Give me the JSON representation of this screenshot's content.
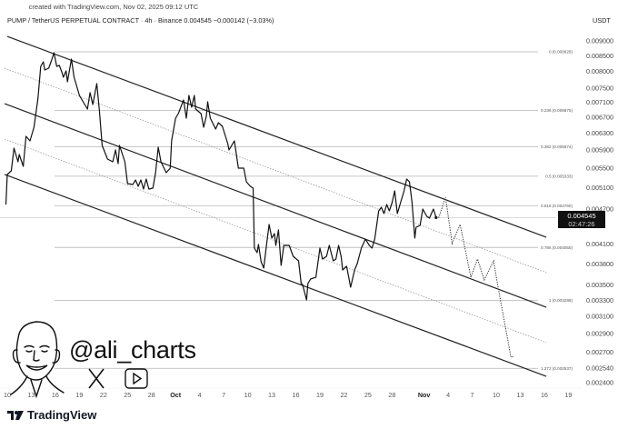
{
  "header": {
    "created": "created with TradingView.com, Nov 02, 2025 09:12 UTC",
    "symbol_line": "PUMP / TetherUS PERPETUAL CONTRACT · 4h · Binance  0.004545  −0.000142 (−3.03%)",
    "currency": "USDT"
  },
  "price_badge": {
    "price": "0.004545",
    "countdown": "02:47:26"
  },
  "watermark": {
    "handle": "@ali_charts",
    "icons": [
      "x-logo-icon",
      "youtube-play-icon",
      "cartoon-avatar"
    ]
  },
  "footer": {
    "brand": "TradingView"
  },
  "colors": {
    "price_line": "#111111",
    "channel": "#222222",
    "fib": "#b0b0b0",
    "badge": "#111111"
  },
  "chart_data": {
    "type": "line",
    "title": "",
    "xlabel": "",
    "ylabel": "",
    "y_scale": "log",
    "ylim": [
      0.0024,
      0.009
    ],
    "grid": false,
    "y_ticks": [
      "0.009000",
      "0.008500",
      "0.008000",
      "0.007500",
      "0.007100",
      "0.006700",
      "0.006300",
      "0.005900",
      "0.005500",
      "0.005100",
      "0.004700",
      "0.004100",
      "0.003800",
      "0.003500",
      "0.003300",
      "0.003100",
      "0.002900",
      "0.002700",
      "0.002540",
      "0.002400"
    ],
    "x_ticks": [
      {
        "label": "10",
        "date": "2025-09-10"
      },
      {
        "label": "13",
        "date": "2025-09-13"
      },
      {
        "label": "16",
        "date": "2025-09-16"
      },
      {
        "label": "19",
        "date": "2025-09-19"
      },
      {
        "label": "22",
        "date": "2025-09-22"
      },
      {
        "label": "25",
        "date": "2025-09-25"
      },
      {
        "label": "28",
        "date": "2025-09-28"
      },
      {
        "label": "Oct",
        "date": "2025-10-01"
      },
      {
        "label": "4",
        "date": "2025-10-04"
      },
      {
        "label": "7",
        "date": "2025-10-07"
      },
      {
        "label": "10",
        "date": "2025-10-10"
      },
      {
        "label": "13",
        "date": "2025-10-13"
      },
      {
        "label": "16",
        "date": "2025-10-16"
      },
      {
        "label": "19",
        "date": "2025-10-19"
      },
      {
        "label": "22",
        "date": "2025-10-22"
      },
      {
        "label": "25",
        "date": "2025-10-25"
      },
      {
        "label": "28",
        "date": "2025-10-28"
      },
      {
        "label": "Nov",
        "date": "2025-11-01"
      },
      {
        "label": "4",
        "date": "2025-11-04"
      },
      {
        "label": "7",
        "date": "2025-11-07"
      },
      {
        "label": "10",
        "date": "2025-11-10"
      },
      {
        "label": "13",
        "date": "2025-11-13"
      },
      {
        "label": "16",
        "date": "2025-11-16"
      },
      {
        "label": "19",
        "date": "2025-11-19"
      }
    ],
    "last_price": 0.004545,
    "price": [
      [
        "2025-09-09 20",
        0.00478
      ],
      [
        "2025-09-10 00",
        0.005369
      ],
      [
        "2025-09-10 12",
        0.005444
      ],
      [
        "2025-09-10 20",
        0.005945
      ],
      [
        "2025-09-11 08",
        0.005639
      ],
      [
        "2025-09-11 12",
        0.0058
      ],
      [
        "2025-09-12 00",
        0.005541
      ],
      [
        "2025-09-12 08",
        0.006223
      ],
      [
        "2025-09-12 20",
        0.006115
      ],
      [
        "2025-09-13 08",
        0.006445
      ],
      [
        "2025-09-13 20",
        0.007213
      ],
      [
        "2025-09-14 04",
        0.008157
      ],
      [
        "2025-09-14 12",
        0.008302
      ],
      [
        "2025-09-14 16",
        0.008042
      ],
      [
        "2025-09-15 04",
        0.0081
      ],
      [
        "2025-09-15 12",
        0.00833
      ],
      [
        "2025-09-15 20",
        0.008598
      ],
      [
        "2025-09-16 04",
        0.008157
      ],
      [
        "2025-09-16 12",
        0.008186
      ],
      [
        "2025-09-16 20",
        0.007959
      ],
      [
        "2025-09-17 00",
        0.007819
      ],
      [
        "2025-09-17 08",
        0.008015
      ],
      [
        "2025-09-17 12",
        0.007683
      ],
      [
        "2025-09-18 00",
        0.008389
      ],
      [
        "2025-09-18 08",
        0.007819
      ],
      [
        "2025-09-19 00",
        0.007289
      ],
      [
        "2025-09-19 08",
        0.007161
      ],
      [
        "2025-09-20 00",
        0.006915
      ],
      [
        "2025-09-20 08",
        0.007366
      ],
      [
        "2025-09-20 16",
        0.007037
      ],
      [
        "2025-09-21 04",
        0.007629
      ],
      [
        "2025-09-21 12",
        0.006866
      ],
      [
        "2025-09-21 20",
        0.006008
      ],
      [
        "2025-09-22 12",
        0.005699
      ],
      [
        "2025-09-23 04",
        0.005639
      ],
      [
        "2025-09-23 12",
        0.005903
      ],
      [
        "2025-09-23 20",
        0.0056
      ],
      [
        "2025-09-24 00",
        0.006008
      ],
      [
        "2025-09-24 16",
        0.005639
      ],
      [
        "2025-09-25 00",
        0.005183
      ],
      [
        "2025-09-25 16",
        0.005165
      ],
      [
        "2025-09-26 00",
        0.005256
      ],
      [
        "2025-09-26 08",
        0.005129
      ],
      [
        "2025-09-26 16",
        0.005256
      ],
      [
        "2025-09-27 00",
        0.005075
      ],
      [
        "2025-09-27 08",
        0.005275
      ],
      [
        "2025-09-27 16",
        0.005075
      ],
      [
        "2025-09-28 04",
        0.005093
      ],
      [
        "2025-09-28 12",
        0.005406
      ],
      [
        "2025-09-28 20",
        0.005965
      ],
      [
        "2025-09-29 04",
        0.005639
      ],
      [
        "2025-09-29 20",
        0.005406
      ],
      [
        "2025-09-30 08",
        0.005502
      ],
      [
        "2025-09-30 12",
        0.006115
      ],
      [
        "2025-10-01 00",
        0.006675
      ],
      [
        "2025-10-01 08",
        0.006794
      ],
      [
        "2025-10-02 00",
        0.007161
      ],
      [
        "2025-10-02 08",
        0.006675
      ],
      [
        "2025-10-02 16",
        0.007289
      ],
      [
        "2025-10-03 00",
        0.006963
      ],
      [
        "2025-10-03 08",
        0.007289
      ],
      [
        "2025-10-03 12",
        0.006915
      ],
      [
        "2025-10-04 04",
        0.006794
      ],
      [
        "2025-10-04 12",
        0.006445
      ],
      [
        "2025-10-04 20",
        0.006723
      ],
      [
        "2025-10-05 00",
        0.007112
      ],
      [
        "2025-10-05 08",
        0.006675
      ],
      [
        "2025-10-06 00",
        0.0064
      ],
      [
        "2025-10-06 08",
        0.006559
      ],
      [
        "2025-10-06 20",
        0.006467
      ],
      [
        "2025-10-07 12",
        0.00605
      ],
      [
        "2025-10-07 16",
        0.005903
      ],
      [
        "2025-10-08 08",
        0.006115
      ],
      [
        "2025-10-08 20",
        0.005502
      ],
      [
        "2025-10-09 12",
        0.005502
      ],
      [
        "2025-10-09 20",
        0.00522
      ],
      [
        "2025-10-10 08",
        0.005129
      ],
      [
        "2025-10-10 16",
        0.005093
      ],
      [
        "2025-10-10 20",
        0.004038
      ],
      [
        "2025-10-11 04",
        0.003968
      ],
      [
        "2025-10-11 08",
        0.004096
      ],
      [
        "2025-10-11 16",
        0.003831
      ],
      [
        "2025-10-12 00",
        0.003738
      ],
      [
        "2025-10-12 08",
        0.004081
      ],
      [
        "2025-10-12 16",
        0.004424
      ],
      [
        "2025-10-13 00",
        0.004198
      ],
      [
        "2025-10-13 08",
        0.004272
      ],
      [
        "2025-10-13 12",
        0.004081
      ],
      [
        "2025-10-13 20",
        0.004332
      ],
      [
        "2025-10-14 04",
        0.003778
      ],
      [
        "2025-10-14 12",
        0.004081
      ],
      [
        "2025-10-15 04",
        0.004081
      ],
      [
        "2025-10-15 16",
        0.003912
      ],
      [
        "2025-10-16 08",
        0.003845
      ],
      [
        "2025-10-16 16",
        0.003521
      ],
      [
        "2025-10-16 20",
        0.003509
      ],
      [
        "2025-10-17 08",
        0.003305
      ],
      [
        "2025-10-17 12",
        0.003521
      ],
      [
        "2025-10-17 20",
        0.003583
      ],
      [
        "2025-10-18 12",
        0.003608
      ],
      [
        "2025-10-19 00",
        0.004038
      ],
      [
        "2025-10-19 08",
        0.003872
      ],
      [
        "2025-10-19 20",
        0.003912
      ],
      [
        "2025-10-20 04",
        0.004081
      ],
      [
        "2025-10-20 16",
        0.003845
      ],
      [
        "2025-10-21 00",
        0.003872
      ],
      [
        "2025-10-21 08",
        0.004081
      ],
      [
        "2025-10-21 16",
        0.003899
      ],
      [
        "2025-10-21 20",
        0.003712
      ],
      [
        "2025-10-22 08",
        0.003764
      ],
      [
        "2025-10-22 20",
        0.003472
      ],
      [
        "2025-10-23 08",
        0.003712
      ],
      [
        "2025-10-23 16",
        0.003804
      ],
      [
        "2025-10-24 04",
        0.004038
      ],
      [
        "2025-10-24 16",
        0.004182
      ],
      [
        "2025-10-25 04",
        0.004081
      ],
      [
        "2025-10-25 12",
        0.004038
      ],
      [
        "2025-10-25 20",
        0.004182
      ],
      [
        "2025-10-26 08",
        0.004665
      ],
      [
        "2025-10-26 16",
        0.004731
      ],
      [
        "2025-10-27 00",
        0.004615
      ],
      [
        "2025-10-27 08",
        0.004781
      ],
      [
        "2025-10-27 16",
        0.004665
      ],
      [
        "2025-10-28 00",
        0.004814
      ],
      [
        "2025-10-28 08",
        0.005039
      ],
      [
        "2025-10-28 16",
        0.004615
      ],
      [
        "2025-10-29 04",
        0.004865
      ],
      [
        "2025-10-29 12",
        0.005039
      ],
      [
        "2025-10-29 20",
        0.005275
      ],
      [
        "2025-10-30 04",
        0.00522
      ],
      [
        "2025-10-30 12",
        0.004814
      ],
      [
        "2025-10-30 20",
        0.004198
      ],
      [
        "2025-10-31 00",
        0.004378
      ],
      [
        "2025-10-31 12",
        0.004409
      ],
      [
        "2025-10-31 20",
        0.004697
      ],
      [
        "2025-11-01 08",
        0.004567
      ],
      [
        "2025-11-01 16",
        0.004535
      ],
      [
        "2025-11-02 04",
        0.004697
      ],
      [
        "2025-11-02 12",
        0.004545
      ]
    ],
    "projection": [
      [
        "2025-11-02 20",
        0.004545
      ],
      [
        "2025-11-03 16",
        0.004917
      ],
      [
        "2025-11-04 12",
        0.00411
      ],
      [
        "2025-11-05 12",
        0.004424
      ],
      [
        "2025-11-06 20",
        0.003608
      ],
      [
        "2025-11-07 16",
        0.003872
      ],
      [
        "2025-11-08 12",
        0.003571
      ],
      [
        "2025-11-09 16",
        0.003845
      ],
      [
        "2025-11-10 04",
        0.003509
      ],
      [
        "2025-11-11 20",
        0.002649
      ],
      [
        "2025-11-12 04",
        0.002658
      ]
    ],
    "channel_lines": [
      {
        "style": "solid",
        "from": [
          "2025-09-10 00",
          0.009159
        ],
        "to": [
          "2025-11-16 06",
          0.004212
        ]
      },
      {
        "style": "dotted",
        "from": [
          "2025-09-09 16",
          0.0081
        ],
        "to": [
          "2025-11-16 06",
          0.003673
        ]
      },
      {
        "style": "solid",
        "from": [
          "2025-09-09 16",
          0.007061
        ],
        "to": [
          "2025-11-16 06",
          0.003213
        ]
      },
      {
        "style": "dotted",
        "from": [
          "2025-09-09 16",
          0.006157
        ],
        "to": [
          "2025-11-16 06",
          0.002802
        ]
      },
      {
        "style": "solid",
        "from": [
          "2025-09-09 16",
          0.005369
        ],
        "to": [
          "2025-11-16 06",
          0.00246
        ]
      }
    ],
    "fib_levels": [
      {
        "label": "0 (0.008628)",
        "price": 0.008628
      },
      {
        "label": "0.236 (0.006875)",
        "price": 0.006875
      },
      {
        "label": "0.382 (0.005974)",
        "price": 0.005974
      },
      {
        "label": "0.5 (0.005333)",
        "price": 0.005333
      },
      {
        "label": "0.618 (0.004760)",
        "price": 0.00476
      },
      {
        "label": "0.786 (0.004050)",
        "price": 0.00405
      },
      {
        "label": "1 (0.003298)",
        "price": 0.003298
      },
      {
        "label": "1.272 (0.002537)",
        "price": 0.002537
      }
    ]
  }
}
